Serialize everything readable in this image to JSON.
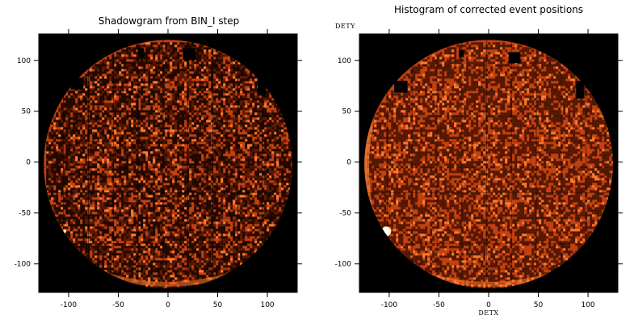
{
  "chart_data": [
    {
      "type": "heatmap",
      "title": "Shadowgram from BIN_I step",
      "xlabel": "",
      "ylabel": "",
      "xlim": [
        -130,
        130
      ],
      "ylim": [
        -128,
        126
      ],
      "xticks": [
        -100,
        -50,
        0,
        50,
        100
      ],
      "yticks": [
        -100,
        -50,
        0,
        50,
        100
      ],
      "colors": {
        "background": "#000000",
        "low": "#5a1804",
        "mid": "#c2410f",
        "high": "#ff7b2c",
        "hot": "#fff2d0"
      },
      "description_visible": "circular detector field with mottled orange counts"
    },
    {
      "type": "heatmap",
      "title": "Histogram of corrected event positions",
      "xlabel": "DETX",
      "ylabel": "DETY",
      "xlim": [
        -130,
        130
      ],
      "ylim": [
        -128,
        126
      ],
      "xticks": [
        -100,
        -50,
        0,
        50,
        100
      ],
      "yticks": [
        -100,
        -50,
        0,
        50,
        100
      ],
      "colors": {
        "background": "#000000",
        "low": "#5a1804",
        "mid": "#c2410f",
        "high": "#ff7b2c",
        "hot": "#fff2d0"
      }
    }
  ]
}
